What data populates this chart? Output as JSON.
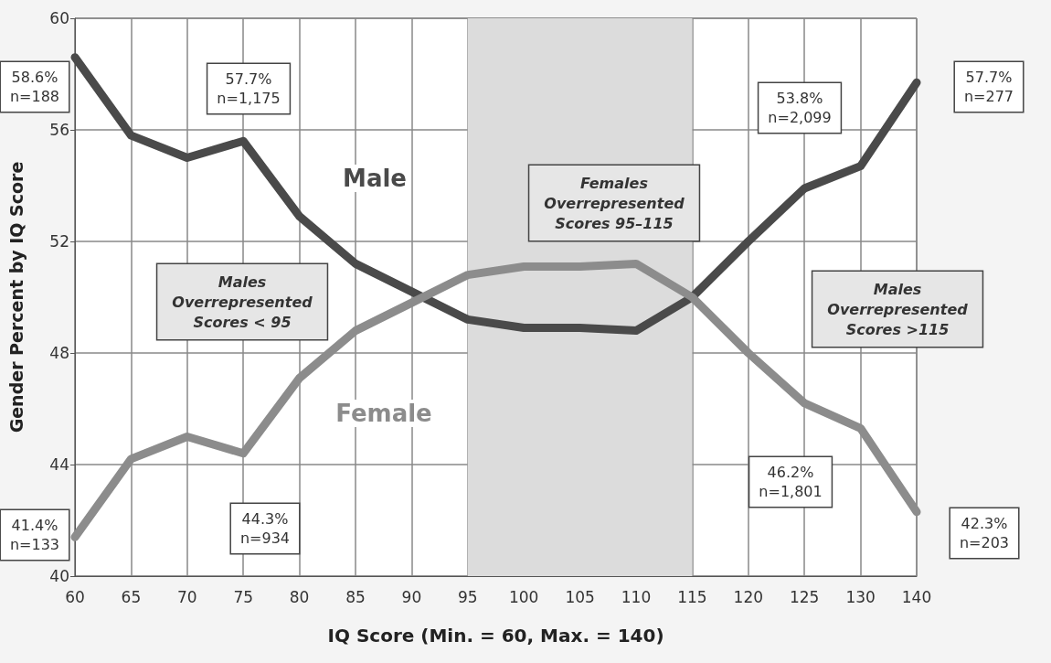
{
  "chart_data": {
    "type": "line",
    "xlabel": "IQ Score (Min. = 60, Max. = 140)",
    "ylabel": "Gender Percent by IQ Score",
    "categories": [
      "60",
      "65",
      "70",
      "75",
      "80",
      "85",
      "90",
      "95",
      "100",
      "105",
      "110",
      "115",
      "120",
      "125",
      "130",
      "140"
    ],
    "series": [
      {
        "name": "Male",
        "color": "#4a4a4a",
        "values": [
          58.6,
          55.8,
          55.0,
          55.6,
          52.9,
          51.2,
          50.2,
          49.2,
          48.9,
          48.9,
          48.8,
          50.0,
          52.0,
          53.9,
          54.7,
          57.7
        ]
      },
      {
        "name": "Female",
        "color": "#8c8c8c",
        "values": [
          41.4,
          44.2,
          45.0,
          44.4,
          47.1,
          48.8,
          49.8,
          50.8,
          51.1,
          51.1,
          51.2,
          50.0,
          48.0,
          46.2,
          45.3,
          42.3
        ]
      }
    ],
    "ylim": [
      40,
      60
    ],
    "yticks": [
      40,
      44,
      48,
      52,
      56,
      60
    ],
    "grid": true,
    "legend": false,
    "marker": "none",
    "line_style": "solid",
    "bands": [
      {
        "axis": "x",
        "from": "95",
        "to": "115",
        "color": "#dcdcdc"
      }
    ],
    "annotations": [
      "Males\nOverrepresented\nScores < 95",
      "Females\nOverrepresented\nScores 95–115",
      "Males\nOverrepresented\nScores >115",
      "58.6%\nn=188",
      "57.7%\nn=1,175",
      "53.8%\nn=2,099",
      "57.7%\nn=277",
      "41.4%\nn=133",
      "44.3%\nn=934",
      "46.2%\nn=1,801",
      "42.3%\nn=203"
    ]
  }
}
